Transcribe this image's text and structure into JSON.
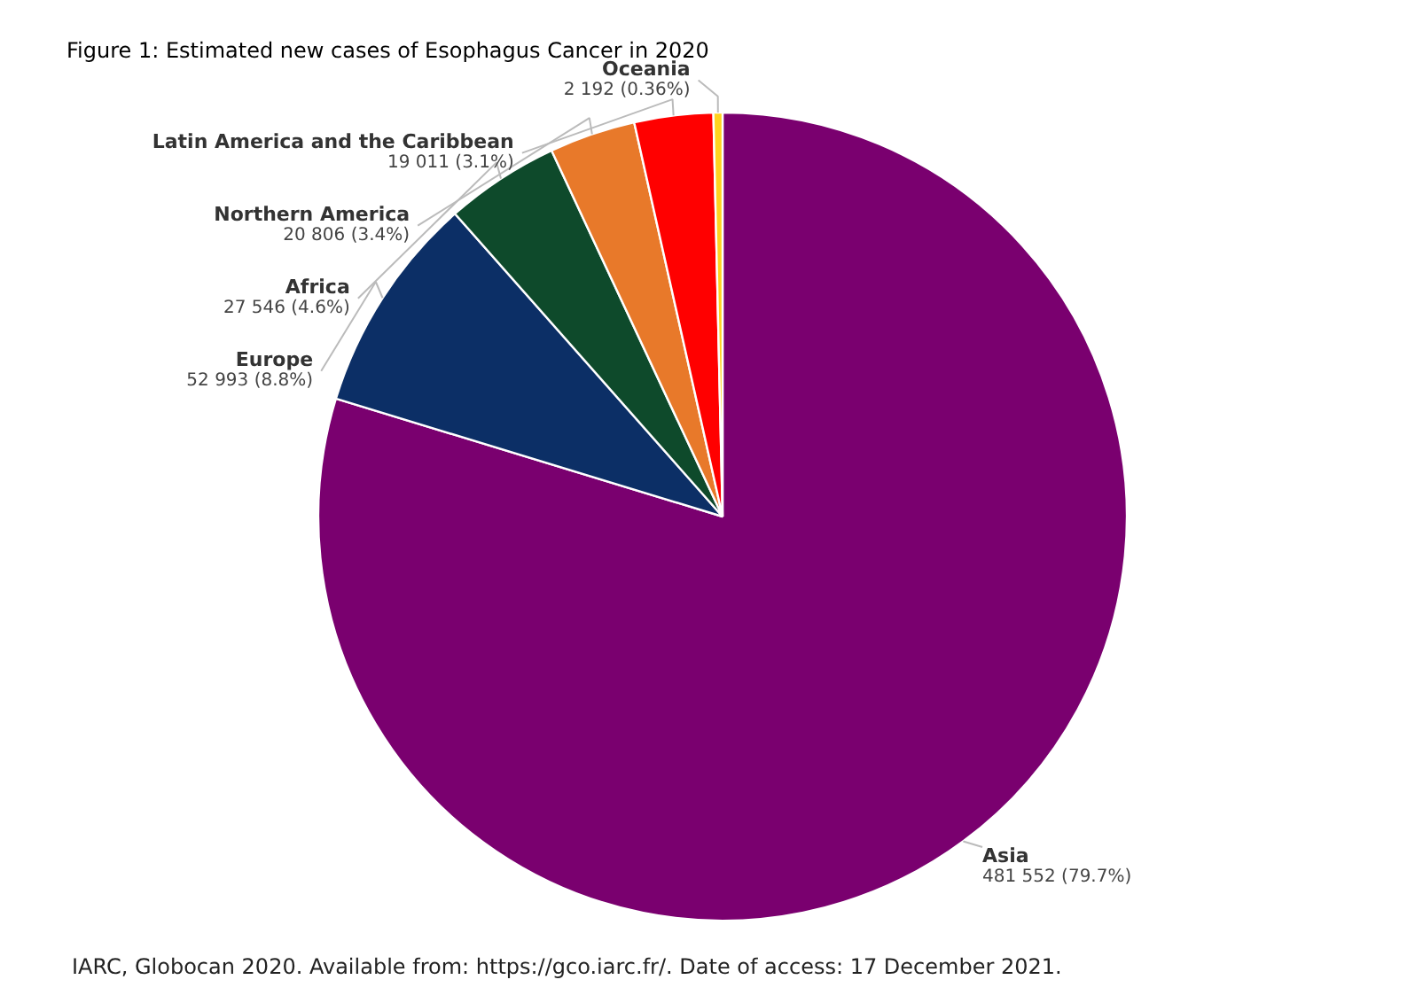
{
  "chart_data": {
    "type": "pie",
    "title": "Figure 1: Estimated new cases of Esophagus Cancer in 2020",
    "categories": [
      "Asia",
      "Europe",
      "Africa",
      "Northern America",
      "Latin America and the Caribbean",
      "Oceania"
    ],
    "values": [
      481552,
      52993,
      27546,
      20806,
      19011,
      2192
    ],
    "value_labels": [
      "481 552 (79.7%)",
      "52 993 (8.8%)",
      "27 546 (4.6%)",
      "20 806 (3.4%)",
      "19 011 (3.1%)",
      "2 192 (0.36%)"
    ],
    "colors": [
      "#7a006f",
      "#0c2f66",
      "#0e4a2b",
      "#e8792a",
      "#ff0000",
      "#ffd21f"
    ],
    "annotations": [
      "IARC, Globocan 2020. Available from: https://gco.iarc.fr/. Date of access: 17 December 2021."
    ]
  }
}
